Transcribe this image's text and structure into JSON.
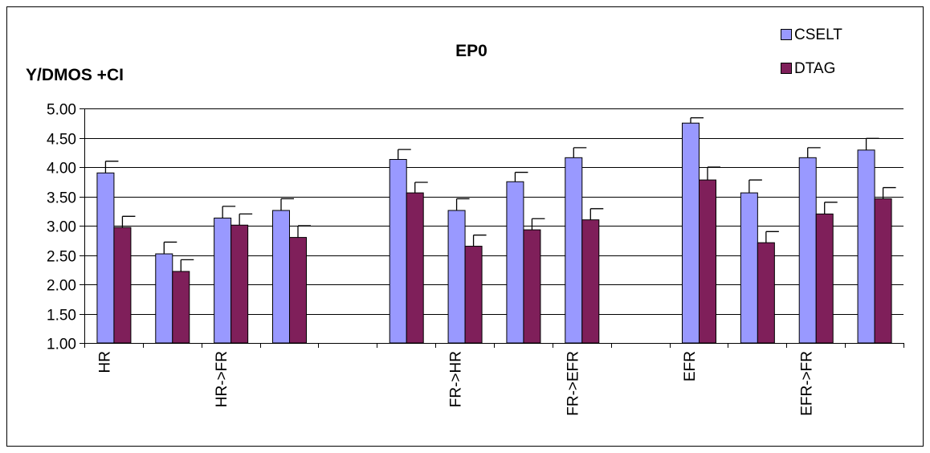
{
  "chart_data": {
    "type": "bar",
    "title": "EP0",
    "ylabel": "Y/DMOS +CI",
    "xlabel": "",
    "ylim": [
      1.0,
      5.0
    ],
    "yticks": [
      "1.00",
      "1.50",
      "2.00",
      "2.50",
      "3.00",
      "3.50",
      "4.00",
      "4.50",
      "5.00"
    ],
    "ytick_values": [
      1.0,
      1.5,
      2.0,
      2.5,
      3.0,
      3.5,
      4.0,
      4.5,
      5.0
    ],
    "grid": true,
    "legend_position": "top-right",
    "categories": [
      "HR",
      "",
      "HR->FR",
      "",
      "",
      "",
      "FR->HR",
      "",
      "FR->EFR",
      "",
      "EFR",
      "",
      "EFR->FR",
      ""
    ],
    "series": [
      {
        "name": "CSELT",
        "color": "#9999ff",
        "values": [
          3.9,
          2.52,
          3.13,
          3.26,
          null,
          4.13,
          3.26,
          3.75,
          4.16,
          null,
          4.75,
          3.56,
          4.16,
          4.29
        ],
        "ci": [
          0.2,
          0.2,
          0.2,
          0.2,
          null,
          0.17,
          0.2,
          0.16,
          0.17,
          null,
          0.09,
          0.22,
          0.17,
          0.2
        ]
      },
      {
        "name": "DTAG",
        "color": "#7f1f5a",
        "values": [
          2.97,
          2.22,
          3.01,
          2.8,
          null,
          3.56,
          2.65,
          2.93,
          3.1,
          null,
          3.78,
          2.71,
          3.2,
          3.46
        ],
        "ci": [
          0.19,
          0.2,
          0.19,
          0.2,
          null,
          0.18,
          0.19,
          0.19,
          0.19,
          null,
          0.22,
          0.19,
          0.2,
          0.19
        ]
      }
    ]
  }
}
